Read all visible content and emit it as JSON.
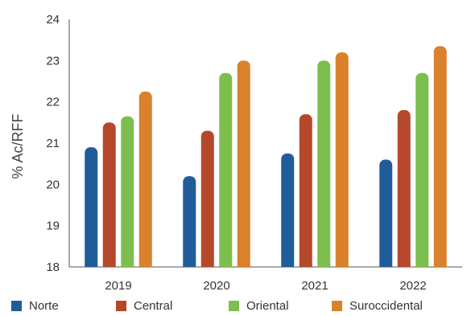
{
  "chart_data": {
    "type": "bar",
    "title": "",
    "xlabel": "",
    "ylabel": "% Ac/RFF",
    "categories": [
      "2019",
      "2020",
      "2021",
      "2022"
    ],
    "ylim": [
      18,
      24
    ],
    "yticks": [
      "18",
      "19",
      "20",
      "21",
      "22",
      "23",
      "24"
    ],
    "grid": false,
    "legend_position": "bottom",
    "series": [
      {
        "name": "Norte",
        "color": "#1f5c99",
        "values": [
          20.9,
          20.2,
          20.75,
          20.6
        ]
      },
      {
        "name": "Central",
        "color": "#b5482b",
        "values": [
          21.5,
          21.3,
          21.7,
          21.8
        ]
      },
      {
        "name": "Oriental",
        "color": "#7dbf4e",
        "values": [
          21.65,
          22.7,
          23.0,
          22.7
        ]
      },
      {
        "name": "Suroccidental",
        "color": "#d9822b",
        "values": [
          22.25,
          23.0,
          23.2,
          23.35
        ]
      }
    ]
  }
}
